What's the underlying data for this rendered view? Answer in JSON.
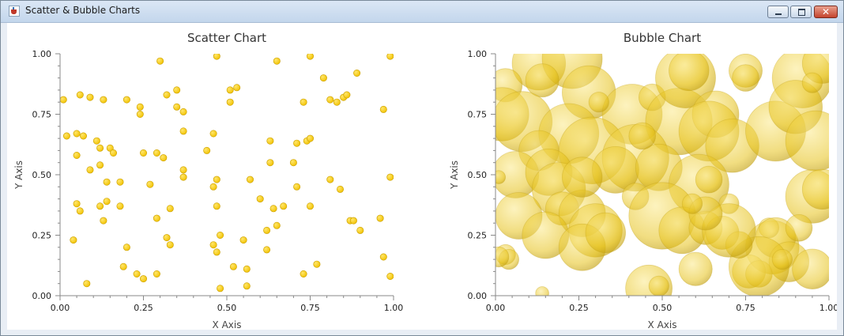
{
  "window": {
    "title": "Scatter & Bubble Charts",
    "close_glyph": "✕",
    "icons": {
      "app": "java-cup-icon",
      "minimize": "minimize-icon",
      "maximize": "maximize-icon",
      "close": "close-icon"
    }
  },
  "colors": {
    "scatter_point": "#f2c200",
    "scatter_point_edge": "#c99e00",
    "bubble_fill": "#e6c21a",
    "bubble_edge": "#c09e10",
    "axis": "#888888",
    "title_bar": "#c9dbef"
  },
  "chart_data": [
    {
      "type": "scatter",
      "title": "Scatter Chart",
      "xlabel": "X Axis",
      "ylabel": "Y Axis",
      "xlim": [
        0,
        1
      ],
      "ylim": [
        0,
        1
      ],
      "xticks": [
        "0.00",
        "0.25",
        "0.50",
        "0.75",
        "1.00"
      ],
      "yticks": [
        "0.00",
        "0.25",
        "0.50",
        "0.75",
        "1.00"
      ],
      "grid": false,
      "series": [
        {
          "points": [
            [
              0.01,
              0.81
            ],
            [
              0.02,
              0.66
            ],
            [
              0.04,
              0.23
            ],
            [
              0.05,
              0.67
            ],
            [
              0.06,
              0.83
            ],
            [
              0.07,
              0.66
            ],
            [
              0.09,
              0.82
            ],
            [
              0.11,
              0.64
            ],
            [
              0.12,
              0.61
            ],
            [
              0.13,
              0.81
            ],
            [
              0.15,
              0.61
            ],
            [
              0.05,
              0.58
            ],
            [
              0.09,
              0.52
            ],
            [
              0.12,
              0.54
            ],
            [
              0.14,
              0.47
            ],
            [
              0.18,
              0.47
            ],
            [
              0.16,
              0.59
            ],
            [
              0.05,
              0.38
            ],
            [
              0.06,
              0.35
            ],
            [
              0.12,
              0.37
            ],
            [
              0.14,
              0.39
            ],
            [
              0.18,
              0.37
            ],
            [
              0.13,
              0.31
            ],
            [
              0.08,
              0.05
            ],
            [
              0.19,
              0.12
            ],
            [
              0.23,
              0.09
            ],
            [
              0.25,
              0.07
            ],
            [
              0.2,
              0.2
            ],
            [
              0.2,
              0.81
            ],
            [
              0.24,
              0.78
            ],
            [
              0.24,
              0.75
            ],
            [
              0.25,
              0.59
            ],
            [
              0.27,
              0.46
            ],
            [
              0.29,
              0.32
            ],
            [
              0.29,
              0.59
            ],
            [
              0.31,
              0.57
            ],
            [
              0.32,
              0.83
            ],
            [
              0.33,
              0.36
            ],
            [
              0.35,
              0.85
            ],
            [
              0.35,
              0.78
            ],
            [
              0.37,
              0.76
            ],
            [
              0.37,
              0.68
            ],
            [
              0.37,
              0.52
            ],
            [
              0.37,
              0.49
            ],
            [
              0.3,
              0.97
            ],
            [
              0.32,
              0.24
            ],
            [
              0.33,
              0.21
            ],
            [
              0.29,
              0.09
            ],
            [
              0.47,
              0.99
            ],
            [
              0.44,
              0.6
            ],
            [
              0.46,
              0.67
            ],
            [
              0.47,
              0.48
            ],
            [
              0.46,
              0.45
            ],
            [
              0.47,
              0.37
            ],
            [
              0.48,
              0.25
            ],
            [
              0.46,
              0.21
            ],
            [
              0.47,
              0.18
            ],
            [
              0.48,
              0.03
            ],
            [
              0.51,
              0.85
            ],
            [
              0.51,
              0.8
            ],
            [
              0.53,
              0.86
            ],
            [
              0.52,
              0.12
            ],
            [
              0.55,
              0.23
            ],
            [
              0.56,
              0.11
            ],
            [
              0.56,
              0.04
            ],
            [
              0.57,
              0.48
            ],
            [
              0.6,
              0.4
            ],
            [
              0.62,
              0.27
            ],
            [
              0.63,
              0.64
            ],
            [
              0.63,
              0.55
            ],
            [
              0.64,
              0.36
            ],
            [
              0.65,
              0.97
            ],
            [
              0.65,
              0.29
            ],
            [
              0.67,
              0.37
            ],
            [
              0.62,
              0.19
            ],
            [
              0.7,
              0.55
            ],
            [
              0.71,
              0.63
            ],
            [
              0.71,
              0.45
            ],
            [
              0.73,
              0.8
            ],
            [
              0.74,
              0.64
            ],
            [
              0.75,
              0.99
            ],
            [
              0.75,
              0.37
            ],
            [
              0.73,
              0.09
            ],
            [
              0.77,
              0.13
            ],
            [
              0.79,
              0.9
            ],
            [
              0.81,
              0.81
            ],
            [
              0.81,
              0.48
            ],
            [
              0.83,
              0.8
            ],
            [
              0.84,
              0.44
            ],
            [
              0.85,
              0.82
            ],
            [
              0.86,
              0.83
            ],
            [
              0.87,
              0.31
            ],
            [
              0.88,
              0.31
            ],
            [
              0.89,
              0.92
            ],
            [
              0.9,
              0.27
            ],
            [
              0.96,
              0.32
            ],
            [
              0.97,
              0.77
            ],
            [
              0.97,
              0.16
            ],
            [
              0.99,
              0.99
            ],
            [
              0.99,
              0.49
            ],
            [
              0.99,
              0.08
            ],
            [
              0.75,
              0.65
            ]
          ]
        }
      ]
    },
    {
      "type": "bubble",
      "title": "Bubble Chart",
      "xlabel": "X Axis",
      "ylabel": "Y Axis",
      "xlim": [
        0,
        1
      ],
      "ylim": [
        0,
        1
      ],
      "xticks": [
        "0.00",
        "0.25",
        "0.50",
        "0.75",
        "1.00"
      ],
      "yticks": [
        "0.00",
        "0.25",
        "0.50",
        "0.75",
        "1.00"
      ],
      "grid": false,
      "series": [
        {
          "bubbles": [
            [
              0.13,
              0.96,
              0.08
            ],
            [
              0.23,
              0.98,
              0.09
            ],
            [
              0.03,
              0.87,
              0.05
            ],
            [
              0.14,
              0.89,
              0.05
            ],
            [
              0.28,
              0.84,
              0.08
            ],
            [
              0.41,
              0.75,
              0.09
            ],
            [
              0.47,
              0.82,
              0.04
            ],
            [
              0.55,
              0.72,
              0.1
            ],
            [
              0.57,
              0.9,
              0.09
            ],
            [
              0.58,
              0.93,
              0.06
            ],
            [
              0.66,
              0.75,
              0.07
            ],
            [
              0.75,
              0.93,
              0.05
            ],
            [
              0.92,
              0.9,
              0.09
            ],
            [
              0.98,
              0.96,
              0.06
            ],
            [
              0.02,
              0.75,
              0.08
            ],
            [
              0.08,
              0.72,
              0.09
            ],
            [
              0.22,
              0.67,
              0.09
            ],
            [
              0.29,
              0.6,
              0.1
            ],
            [
              0.42,
              0.57,
              0.1
            ],
            [
              0.64,
              0.68,
              0.09
            ],
            [
              0.71,
              0.62,
              0.08
            ],
            [
              0.84,
              0.68,
              0.09
            ],
            [
              0.9,
              0.78,
              0.08
            ],
            [
              0.96,
              0.64,
              0.09
            ],
            [
              0.13,
              0.6,
              0.06
            ],
            [
              0.06,
              0.5,
              0.07
            ],
            [
              0.16,
              0.51,
              0.07
            ],
            [
              0.19,
              0.44,
              0.08
            ],
            [
              0.36,
              0.52,
              0.07
            ],
            [
              0.49,
              0.53,
              0.07
            ],
            [
              0.61,
              0.46,
              0.09
            ],
            [
              0.64,
              0.48,
              0.04
            ],
            [
              0.7,
              0.38,
              0.03
            ],
            [
              0.95,
              0.41,
              0.08
            ],
            [
              0.98,
              0.44,
              0.06
            ],
            [
              0.07,
              0.33,
              0.07
            ],
            [
              0.2,
              0.36,
              0.05
            ],
            [
              0.26,
              0.34,
              0.07
            ],
            [
              0.3,
              0.27,
              0.08
            ],
            [
              0.42,
              0.41,
              0.04
            ],
            [
              0.5,
              0.33,
              0.1
            ],
            [
              0.56,
              0.27,
              0.07
            ],
            [
              0.63,
              0.28,
              0.05
            ],
            [
              0.68,
              0.26,
              0.05
            ],
            [
              0.83,
              0.2,
              0.08
            ],
            [
              0.82,
              0.28,
              0.03
            ],
            [
              0.84,
              0.24,
              0.06
            ],
            [
              0.91,
              0.28,
              0.04
            ],
            [
              0.88,
              0.14,
              0.06
            ],
            [
              0.95,
              0.11,
              0.06
            ],
            [
              0.15,
              0.25,
              0.07
            ],
            [
              0.26,
              0.2,
              0.07
            ],
            [
              0.33,
              0.26,
              0.06
            ],
            [
              0.03,
              0.17,
              0.03
            ],
            [
              0.04,
              0.15,
              0.03
            ],
            [
              0.6,
              0.11,
              0.05
            ],
            [
              0.76,
              0.1,
              0.05
            ],
            [
              0.79,
              0.09,
              0.04
            ],
            [
              0.79,
              0.12,
              0.09
            ],
            [
              0.46,
              0.03,
              0.07
            ],
            [
              0.49,
              0.04,
              0.03
            ],
            [
              0.14,
              0.01,
              0.02
            ],
            [
              0.73,
              0.21,
              0.04
            ],
            [
              0.7,
              0.27,
              0.08
            ],
            [
              0.63,
              0.34,
              0.05
            ],
            [
              0.59,
              0.38,
              0.03
            ],
            [
              0.01,
              0.49,
              0.02
            ],
            [
              0.01,
              0.16,
              0.03
            ],
            [
              0.86,
              0.15,
              0.03
            ],
            [
              0.31,
              0.8,
              0.03
            ],
            [
              0.75,
              0.9,
              0.04
            ],
            [
              0.95,
              0.88,
              0.03
            ],
            [
              0.44,
              0.66,
              0.04
            ],
            [
              0.26,
              0.49,
              0.06
            ]
          ]
        }
      ]
    }
  ]
}
